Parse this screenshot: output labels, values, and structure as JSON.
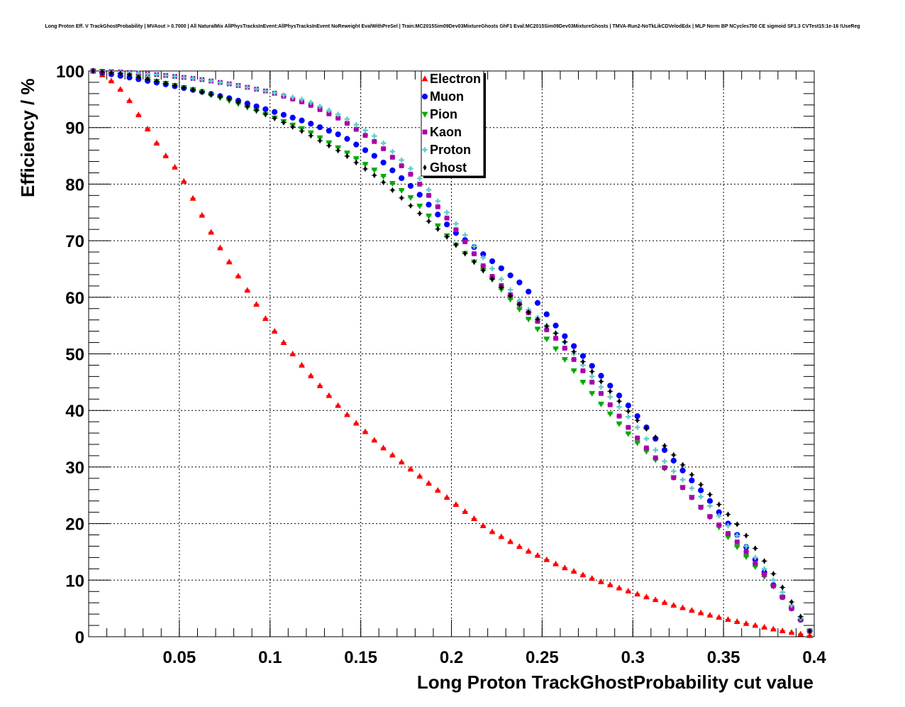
{
  "title": "Long Proton Eff. V TrackGhostProbability | MVAout > 0.7000 | All NaturalMix AllPhysTracksInEvent:AllPhysTracksInEvent NoReweight EvalWithPreSel | Train:MC2015Sim09Dev03MixtureGhosts GhF1 Eval:MC2015Sim09Dev03MixtureGhosts | TMVA-Run2-NoTkLikCDVelodEdx | MLP Norm BP NCycles750 CE sigmoid SF1.3 CVTest15:1e-16 !UseReg",
  "chart_data": {
    "type": "scatter",
    "xlabel": "Long Proton TrackGhostProbability cut value",
    "ylabel": "Efficiency / %",
    "xlim": [
      0.0,
      0.4
    ],
    "ylim": [
      0,
      100
    ],
    "x_ticks": [
      "0.05",
      "0.1",
      "0.15",
      "0.2",
      "0.25",
      "0.3",
      "0.35",
      "0.4"
    ],
    "y_ticks": [
      "0",
      "10",
      "20",
      "30",
      "40",
      "50",
      "60",
      "70",
      "80",
      "90",
      "100"
    ],
    "grid": true,
    "legend_position": "top-center",
    "x_sampling": {
      "start": 0.0025,
      "step": 0.005,
      "count": 80
    },
    "series": [
      {
        "name": "Electron",
        "color": "#ff0000",
        "marker": "triangle-up",
        "knots_x": [
          0.0025,
          0.01,
          0.02,
          0.03,
          0.04,
          0.05,
          0.06,
          0.07,
          0.08,
          0.09,
          0.1,
          0.12,
          0.14,
          0.16,
          0.18,
          0.2,
          0.22,
          0.24,
          0.26,
          0.28,
          0.3,
          0.32,
          0.34,
          0.36,
          0.38,
          0.3975
        ],
        "knots_y": [
          100,
          99,
          96,
          91,
          86,
          82,
          76,
          70,
          65,
          60,
          55,
          47,
          40,
          34,
          29,
          24,
          19,
          15.5,
          12.5,
          10,
          7.8,
          5.8,
          4,
          2.5,
          1.2,
          0.2
        ]
      },
      {
        "name": "Muon",
        "color": "#0000ff",
        "marker": "circle",
        "knots_x": [
          0.0025,
          0.02,
          0.04,
          0.06,
          0.08,
          0.1,
          0.12,
          0.14,
          0.16,
          0.18,
          0.2,
          0.22,
          0.24,
          0.26,
          0.28,
          0.3,
          0.32,
          0.34,
          0.36,
          0.38,
          0.3975
        ],
        "knots_y": [
          100,
          99,
          97.8,
          96.5,
          95,
          93,
          91,
          88.5,
          84.5,
          79,
          72,
          67,
          62,
          54,
          47,
          40,
          32,
          25,
          17,
          8,
          1
        ]
      },
      {
        "name": "Pion",
        "color": "#00aa00",
        "marker": "triangle-down",
        "knots_x": [
          0.0025,
          0.02,
          0.04,
          0.06,
          0.08,
          0.1,
          0.12,
          0.14,
          0.16,
          0.18,
          0.2,
          0.22,
          0.24,
          0.26,
          0.28,
          0.3,
          0.32,
          0.34,
          0.36,
          0.38,
          0.3975
        ],
        "knots_y": [
          100,
          99.5,
          98,
          96.5,
          94.5,
          92,
          89.5,
          86,
          82,
          77,
          70,
          64,
          57,
          50,
          42,
          35,
          29,
          22,
          15,
          8,
          1
        ]
      },
      {
        "name": "Kaon",
        "color": "#aa00aa",
        "marker": "square",
        "knots_x": [
          0.0025,
          0.02,
          0.04,
          0.06,
          0.08,
          0.1,
          0.12,
          0.14,
          0.16,
          0.18,
          0.2,
          0.22,
          0.24,
          0.26,
          0.28,
          0.3,
          0.32,
          0.34,
          0.36,
          0.38,
          0.3975
        ],
        "knots_y": [
          100,
          99.8,
          99.3,
          98.6,
          97.6,
          96.3,
          94.3,
          91.3,
          87,
          81,
          73,
          64.5,
          58,
          52,
          44,
          36,
          29,
          22,
          16,
          8,
          1
        ]
      },
      {
        "name": "Proton",
        "color": "#66cccc",
        "marker": "cross",
        "knots_x": [
          0.0025,
          0.02,
          0.04,
          0.06,
          0.08,
          0.1,
          0.12,
          0.14,
          0.16,
          0.18,
          0.2,
          0.22,
          0.24,
          0.26,
          0.28,
          0.3,
          0.32,
          0.34,
          0.36,
          0.38,
          0.3975
        ],
        "knots_y": [
          100,
          99.8,
          99.3,
          98.6,
          97.6,
          96.3,
          94.8,
          92,
          88,
          82,
          74,
          66,
          58.5,
          53,
          45,
          38,
          30,
          24,
          17,
          9,
          1
        ]
      },
      {
        "name": "Ghost",
        "color": "#000000",
        "marker": "diamond",
        "knots_x": [
          0.0025,
          0.02,
          0.04,
          0.06,
          0.08,
          0.1,
          0.12,
          0.14,
          0.16,
          0.18,
          0.2,
          0.22,
          0.24,
          0.26,
          0.28,
          0.3,
          0.32,
          0.34,
          0.36,
          0.38,
          0.3975
        ],
        "knots_y": [
          100,
          99.5,
          98,
          96.5,
          94.8,
          92,
          89,
          85.5,
          81,
          75.5,
          70,
          64,
          58,
          53,
          46,
          39,
          33,
          26,
          19,
          10,
          1
        ]
      }
    ]
  }
}
